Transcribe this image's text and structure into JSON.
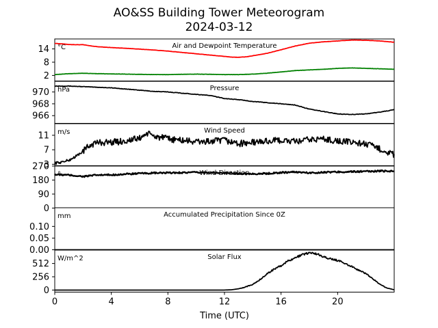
{
  "figure": {
    "title_line1": "AO&SS Building Tower Meteorogram",
    "title_line2": "2024-03-12",
    "xlabel": "Time (UTC)",
    "x_ticks": [
      "0",
      "4",
      "8",
      "12",
      "16",
      "20"
    ]
  },
  "chart_data": [
    {
      "type": "line",
      "title": "Air and Dewpoint Temperature",
      "unit": "°C",
      "xlim": [
        0,
        24
      ],
      "ylim": [
        -0.5,
        18.5
      ],
      "yticks": [
        2,
        8,
        14
      ],
      "series": [
        {
          "color": "#ff0000",
          "x": [
            0,
            0.5,
            1,
            1.5,
            2,
            2.5,
            3,
            3.5,
            4,
            5,
            6,
            7,
            8,
            9,
            10,
            11,
            11.5,
            12,
            12.5,
            13,
            13.5,
            14,
            15,
            16,
            17,
            18,
            19,
            20,
            21,
            22,
            23,
            24
          ],
          "y": [
            16.5,
            16.3,
            16.0,
            15.9,
            15.9,
            15.4,
            15.0,
            14.8,
            14.6,
            14.3,
            13.9,
            13.5,
            13.0,
            12.4,
            11.8,
            11.2,
            10.9,
            10.6,
            10.3,
            10.2,
            10.4,
            10.9,
            12.0,
            13.6,
            15.3,
            16.6,
            17.2,
            17.6,
            18.0,
            17.9,
            17.6,
            17.0
          ]
        },
        {
          "color": "#008000",
          "x": [
            0,
            1,
            2,
            3,
            4,
            5,
            6,
            7,
            8,
            9,
            10,
            11,
            12,
            13,
            14,
            15,
            16,
            17,
            18,
            19,
            20,
            21,
            22,
            23,
            24
          ],
          "y": [
            2.4,
            2.8,
            3.0,
            2.8,
            2.7,
            2.6,
            2.5,
            2.4,
            2.4,
            2.5,
            2.6,
            2.5,
            2.4,
            2.4,
            2.6,
            3.0,
            3.6,
            4.2,
            4.5,
            4.8,
            5.2,
            5.4,
            5.2,
            5.0,
            4.8
          ]
        }
      ]
    },
    {
      "type": "line",
      "title": "Pressure",
      "unit": "hPa",
      "xlim": [
        0,
        24
      ],
      "ylim": [
        964.7,
        971.8
      ],
      "yticks": [
        966,
        968,
        970
      ],
      "series": [
        {
          "color": "#000000",
          "x": [
            0,
            1,
            2,
            3,
            4,
            5,
            6,
            7,
            8,
            9,
            10,
            11,
            12,
            13,
            14,
            15,
            16,
            17,
            18,
            19,
            20,
            21,
            22,
            23,
            24
          ],
          "y": [
            971.0,
            971.0,
            970.9,
            970.8,
            970.7,
            970.5,
            970.3,
            970.1,
            970.0,
            969.8,
            969.6,
            969.4,
            968.9,
            968.7,
            968.4,
            968.2,
            968.0,
            967.8,
            967.1,
            966.7,
            966.3,
            966.2,
            966.3,
            966.6,
            967.0
          ]
        }
      ]
    },
    {
      "type": "line",
      "title": "Wind Speed",
      "unit": "m/s",
      "xlim": [
        0,
        24
      ],
      "ylim": [
        2.6,
        14.2
      ],
      "yticks": [
        3,
        7,
        11
      ],
      "series": [
        {
          "color": "#000000",
          "x": [
            0,
            0.5,
            1,
            1.5,
            2,
            2.5,
            3,
            4,
            5,
            6,
            6.5,
            7,
            8,
            9,
            10,
            11,
            12,
            13,
            14,
            15,
            16,
            17,
            18,
            19,
            20,
            21,
            22,
            23,
            24
          ],
          "y": [
            3.3,
            3.6,
            4.1,
            5.2,
            6.6,
            8.3,
            9.0,
            9.1,
            9.4,
            10.2,
            11.5,
            10.8,
            10.0,
            9.6,
            9.2,
            9.3,
            9.6,
            8.7,
            9.0,
            9.4,
            9.6,
            9.2,
            9.8,
            10.0,
            9.4,
            9.1,
            8.6,
            7.2,
            5.6
          ]
        }
      ]
    },
    {
      "type": "line",
      "title": "Wind Direction",
      "unit": "°",
      "xlim": [
        0,
        24
      ],
      "ylim": [
        0,
        270
      ],
      "yticks": [
        0,
        90,
        180,
        270
      ],
      "series": [
        {
          "color": "#000000",
          "x": [
            0,
            1,
            2,
            3,
            4,
            5,
            6,
            7,
            8,
            9,
            10,
            11,
            12,
            13,
            14,
            15,
            16,
            17,
            18,
            19,
            20,
            21,
            22,
            23,
            24
          ],
          "y": [
            215,
            212,
            203,
            212,
            213,
            218,
            222,
            225,
            226,
            228,
            229,
            228,
            224,
            222,
            220,
            222,
            228,
            232,
            226,
            230,
            232,
            234,
            235,
            238,
            238
          ]
        }
      ]
    },
    {
      "type": "line",
      "title": "Accumulated Precipitation Since 0Z",
      "unit": "mm",
      "xlim": [
        0,
        24
      ],
      "ylim": [
        0,
        0.18
      ],
      "yticks": [
        0.0,
        0.05,
        0.1
      ],
      "ytick_labels": [
        "0.00",
        "0.05",
        "0.10"
      ],
      "series": [
        {
          "color": "#000000",
          "x": [
            0,
            24
          ],
          "y": [
            0,
            0
          ]
        }
      ]
    },
    {
      "type": "line",
      "title": "Solar Flux",
      "unit": "W/m^2",
      "xlim": [
        0,
        24
      ],
      "ylim": [
        -40,
        770
      ],
      "yticks": [
        0,
        256,
        512
      ],
      "series": [
        {
          "color": "#000000",
          "x": [
            0,
            6,
            11,
            12,
            12.5,
            13,
            13.5,
            14,
            14.5,
            15,
            15.5,
            16,
            16.5,
            17,
            17.5,
            18,
            18.5,
            19,
            19.5,
            20,
            20.5,
            21,
            21.5,
            22,
            22.5,
            23,
            23.5,
            24
          ],
          "y": [
            0,
            0,
            0,
            0,
            5,
            25,
            60,
            110,
            200,
            310,
            400,
            470,
            560,
            620,
            680,
            720,
            700,
            640,
            600,
            570,
            520,
            450,
            380,
            320,
            210,
            110,
            40,
            5
          ]
        }
      ]
    }
  ]
}
